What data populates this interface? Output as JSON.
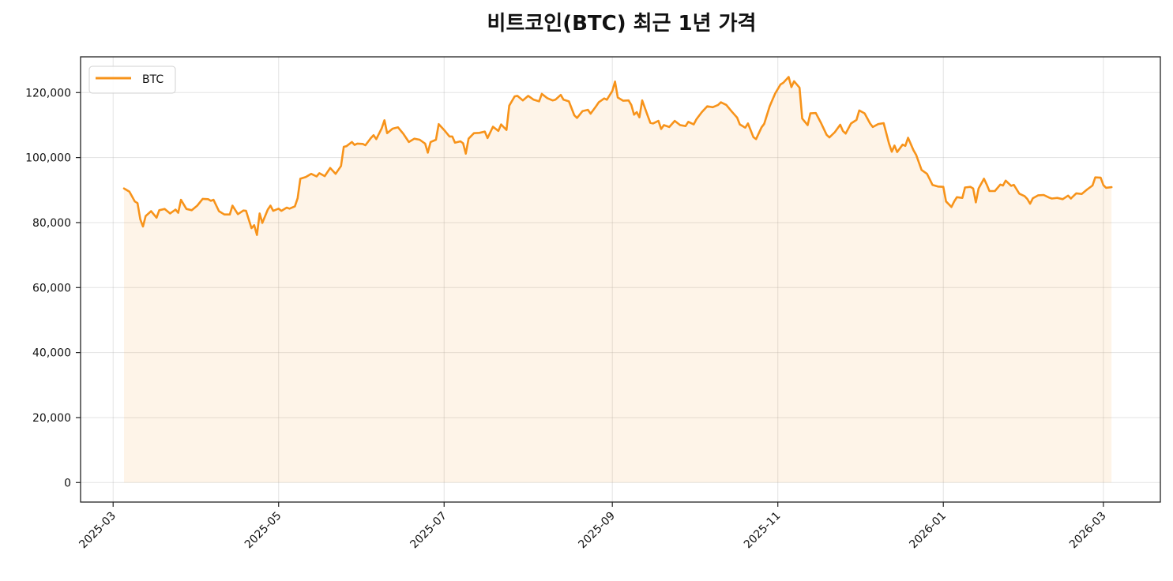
{
  "chart_data": {
    "type": "line",
    "title": "비트코인(BTC) 최근 1년 가격",
    "xlabel": "",
    "ylabel": "",
    "ylim": [
      -6000,
      131000
    ],
    "yticks": [
      0,
      20000,
      40000,
      60000,
      80000,
      100000,
      120000
    ],
    "ytick_labels": [
      "0",
      "20,000",
      "40,000",
      "60,000",
      "80,000",
      "100,000",
      "120,000"
    ],
    "xticks": [
      "2025-03",
      "2025-05",
      "2025-07",
      "2025-09",
      "2025-11",
      "2026-01",
      "2026-03"
    ],
    "xlim": [
      "2025-02-17",
      "2026-03-22"
    ],
    "grid": true,
    "legend": {
      "position": "upper left",
      "entries": [
        "BTC"
      ]
    },
    "fill_under": true,
    "series": [
      {
        "name": "BTC",
        "color": "#F7931A",
        "points": [
          [
            "2025-03-05",
            90500
          ],
          [
            "2025-03-07",
            89500
          ],
          [
            "2025-03-09",
            86500
          ],
          [
            "2025-03-10",
            86000
          ],
          [
            "2025-03-11",
            81000
          ],
          [
            "2025-03-12",
            78800
          ],
          [
            "2025-03-13",
            82000
          ],
          [
            "2025-03-15",
            83500
          ],
          [
            "2025-03-17",
            81500
          ],
          [
            "2025-03-18",
            83800
          ],
          [
            "2025-03-20",
            84200
          ],
          [
            "2025-03-22",
            82800
          ],
          [
            "2025-03-24",
            84000
          ],
          [
            "2025-03-25",
            83000
          ],
          [
            "2025-03-26",
            87000
          ],
          [
            "2025-03-28",
            84200
          ],
          [
            "2025-03-30",
            83800
          ],
          [
            "2025-04-01",
            85200
          ],
          [
            "2025-04-03",
            87300
          ],
          [
            "2025-04-05",
            87200
          ],
          [
            "2025-04-06",
            86700
          ],
          [
            "2025-04-07",
            87000
          ],
          [
            "2025-04-09",
            83500
          ],
          [
            "2025-04-11",
            82500
          ],
          [
            "2025-04-13",
            82500
          ],
          [
            "2025-04-14",
            85200
          ],
          [
            "2025-04-16",
            82600
          ],
          [
            "2025-04-18",
            83700
          ],
          [
            "2025-04-19",
            83600
          ],
          [
            "2025-04-21",
            78300
          ],
          [
            "2025-04-22",
            79200
          ],
          [
            "2025-04-23",
            76200
          ],
          [
            "2025-04-24",
            82800
          ],
          [
            "2025-04-25",
            79900
          ],
          [
            "2025-04-27",
            84000
          ],
          [
            "2025-04-28",
            85200
          ],
          [
            "2025-04-29",
            83600
          ],
          [
            "2025-05-01",
            84300
          ],
          [
            "2025-05-02",
            83600
          ],
          [
            "2025-05-04",
            84600
          ],
          [
            "2025-05-05",
            84300
          ],
          [
            "2025-05-07",
            85000
          ],
          [
            "2025-05-08",
            87500
          ],
          [
            "2025-05-09",
            93500
          ],
          [
            "2025-05-11",
            94000
          ],
          [
            "2025-05-13",
            95000
          ],
          [
            "2025-05-15",
            94200
          ],
          [
            "2025-05-16",
            95200
          ],
          [
            "2025-05-18",
            94300
          ],
          [
            "2025-05-20",
            96800
          ],
          [
            "2025-05-22",
            95000
          ],
          [
            "2025-05-24",
            97400
          ],
          [
            "2025-05-25",
            103300
          ],
          [
            "2025-05-26",
            103500
          ],
          [
            "2025-05-28",
            104800
          ],
          [
            "2025-05-29",
            103900
          ],
          [
            "2025-05-30",
            104300
          ],
          [
            "2025-06-01",
            104200
          ],
          [
            "2025-06-02",
            103800
          ],
          [
            "2025-06-04",
            106000
          ],
          [
            "2025-06-05",
            106900
          ],
          [
            "2025-06-06",
            105700
          ],
          [
            "2025-06-08",
            109000
          ],
          [
            "2025-06-09",
            111500
          ],
          [
            "2025-06-10",
            107500
          ],
          [
            "2025-06-12",
            108900
          ],
          [
            "2025-06-14",
            109300
          ],
          [
            "2025-06-16",
            107300
          ],
          [
            "2025-06-18",
            104800
          ],
          [
            "2025-06-20",
            105800
          ],
          [
            "2025-06-22",
            105500
          ],
          [
            "2025-06-24",
            104300
          ],
          [
            "2025-06-25",
            101500
          ],
          [
            "2025-06-26",
            104800
          ],
          [
            "2025-06-28",
            105500
          ],
          [
            "2025-06-29",
            110300
          ],
          [
            "2025-07-01",
            108500
          ],
          [
            "2025-07-03",
            106500
          ],
          [
            "2025-07-04",
            106500
          ],
          [
            "2025-07-05",
            104600
          ],
          [
            "2025-07-07",
            105000
          ],
          [
            "2025-07-08",
            104400
          ],
          [
            "2025-07-09",
            101200
          ],
          [
            "2025-07-10",
            105800
          ],
          [
            "2025-07-12",
            107500
          ],
          [
            "2025-07-14",
            107600
          ],
          [
            "2025-07-16",
            108000
          ],
          [
            "2025-07-17",
            106000
          ],
          [
            "2025-07-19",
            109500
          ],
          [
            "2025-07-21",
            108200
          ],
          [
            "2025-07-22",
            110200
          ],
          [
            "2025-07-24",
            108500
          ],
          [
            "2025-07-25",
            116000
          ],
          [
            "2025-07-27",
            118800
          ],
          [
            "2025-07-28",
            119000
          ],
          [
            "2025-07-30",
            117600
          ],
          [
            "2025-08-01",
            119000
          ],
          [
            "2025-08-03",
            117800
          ],
          [
            "2025-08-05",
            117300
          ],
          [
            "2025-08-06",
            119600
          ],
          [
            "2025-08-08",
            118300
          ],
          [
            "2025-08-10",
            117600
          ],
          [
            "2025-08-11",
            117800
          ],
          [
            "2025-08-13",
            119300
          ],
          [
            "2025-08-14",
            117800
          ],
          [
            "2025-08-16",
            117300
          ],
          [
            "2025-08-18",
            113000
          ],
          [
            "2025-08-19",
            112200
          ],
          [
            "2025-08-21",
            114300
          ],
          [
            "2025-08-23",
            114700
          ],
          [
            "2025-08-24",
            113500
          ],
          [
            "2025-08-26",
            115800
          ],
          [
            "2025-08-27",
            117000
          ],
          [
            "2025-08-29",
            118200
          ],
          [
            "2025-08-30",
            117800
          ],
          [
            "2025-09-01",
            120500
          ],
          [
            "2025-09-02",
            123400
          ],
          [
            "2025-09-03",
            118500
          ],
          [
            "2025-09-05",
            117500
          ],
          [
            "2025-09-07",
            117600
          ],
          [
            "2025-09-08",
            116200
          ],
          [
            "2025-09-09",
            113200
          ],
          [
            "2025-09-10",
            114000
          ],
          [
            "2025-09-11",
            112400
          ],
          [
            "2025-09-12",
            117600
          ],
          [
            "2025-09-14",
            113000
          ],
          [
            "2025-09-15",
            110700
          ],
          [
            "2025-09-16",
            110500
          ],
          [
            "2025-09-18",
            111300
          ],
          [
            "2025-09-19",
            108800
          ],
          [
            "2025-09-20",
            110000
          ],
          [
            "2025-09-22",
            109400
          ],
          [
            "2025-09-24",
            111300
          ],
          [
            "2025-09-26",
            110000
          ],
          [
            "2025-09-28",
            109700
          ],
          [
            "2025-09-29",
            111000
          ],
          [
            "2025-10-01",
            110200
          ],
          [
            "2025-10-02",
            111800
          ],
          [
            "2025-10-04",
            114000
          ],
          [
            "2025-10-06",
            115800
          ],
          [
            "2025-10-08",
            115500
          ],
          [
            "2025-10-10",
            116200
          ],
          [
            "2025-10-11",
            117000
          ],
          [
            "2025-10-13",
            116200
          ],
          [
            "2025-10-15",
            114200
          ],
          [
            "2025-10-17",
            112300
          ],
          [
            "2025-10-18",
            110200
          ],
          [
            "2025-10-20",
            109200
          ],
          [
            "2025-10-21",
            110500
          ],
          [
            "2025-10-23",
            106300
          ],
          [
            "2025-10-24",
            105700
          ],
          [
            "2025-10-26",
            109300
          ],
          [
            "2025-10-27",
            110400
          ],
          [
            "2025-10-29",
            115800
          ],
          [
            "2025-10-31",
            119700
          ],
          [
            "2025-11-02",
            122500
          ],
          [
            "2025-11-03",
            123000
          ],
          [
            "2025-11-05",
            124800
          ],
          [
            "2025-11-06",
            121700
          ],
          [
            "2025-11-07",
            123500
          ],
          [
            "2025-11-09",
            121500
          ],
          [
            "2025-11-10",
            112000
          ],
          [
            "2025-11-12",
            110000
          ],
          [
            "2025-11-13",
            113600
          ],
          [
            "2025-11-15",
            113700
          ],
          [
            "2025-11-17",
            110500
          ],
          [
            "2025-11-19",
            107000
          ],
          [
            "2025-11-20",
            106200
          ],
          [
            "2025-11-22",
            107800
          ],
          [
            "2025-11-24",
            110100
          ],
          [
            "2025-11-25",
            108200
          ],
          [
            "2025-11-26",
            107400
          ],
          [
            "2025-11-28",
            110500
          ],
          [
            "2025-11-30",
            111600
          ],
          [
            "2025-12-01",
            114500
          ],
          [
            "2025-12-03",
            113600
          ],
          [
            "2025-12-05",
            110500
          ],
          [
            "2025-12-06",
            109400
          ],
          [
            "2025-12-08",
            110300
          ],
          [
            "2025-12-10",
            110600
          ],
          [
            "2025-12-12",
            104300
          ],
          [
            "2025-12-13",
            101800
          ],
          [
            "2025-12-14",
            103700
          ],
          [
            "2025-12-15",
            101700
          ],
          [
            "2025-12-17",
            104000
          ],
          [
            "2025-12-18",
            103600
          ],
          [
            "2025-12-19",
            106100
          ],
          [
            "2025-12-21",
            102300
          ],
          [
            "2025-12-22",
            100800
          ],
          [
            "2025-12-24",
            96200
          ],
          [
            "2025-12-26",
            95000
          ],
          [
            "2025-12-27",
            93300
          ],
          [
            "2025-12-28",
            91600
          ],
          [
            "2025-12-30",
            91100
          ],
          [
            "2026-01-01",
            91000
          ],
          [
            "2026-01-02",
            86500
          ],
          [
            "2026-01-04",
            84800
          ],
          [
            "2026-01-05",
            86500
          ],
          [
            "2026-01-06",
            87800
          ],
          [
            "2026-01-08",
            87600
          ],
          [
            "2026-01-09",
            90800
          ],
          [
            "2026-01-11",
            91000
          ],
          [
            "2026-01-12",
            90500
          ],
          [
            "2026-01-13",
            86200
          ],
          [
            "2026-01-14",
            90500
          ],
          [
            "2026-01-16",
            93500
          ],
          [
            "2026-01-17",
            91700
          ],
          [
            "2026-01-18",
            89700
          ],
          [
            "2026-01-20",
            89700
          ],
          [
            "2026-01-22",
            91700
          ],
          [
            "2026-01-23",
            91400
          ],
          [
            "2026-01-24",
            92900
          ],
          [
            "2026-01-26",
            91300
          ],
          [
            "2026-01-27",
            91600
          ],
          [
            "2026-01-29",
            88900
          ],
          [
            "2026-01-31",
            88100
          ],
          [
            "2026-02-01",
            87200
          ],
          [
            "2026-02-02",
            85800
          ],
          [
            "2026-02-03",
            87500
          ],
          [
            "2026-02-05",
            88400
          ],
          [
            "2026-02-07",
            88500
          ],
          [
            "2026-02-09",
            87700
          ],
          [
            "2026-02-10",
            87400
          ],
          [
            "2026-02-12",
            87600
          ],
          [
            "2026-02-14",
            87200
          ],
          [
            "2026-02-16",
            88300
          ],
          [
            "2026-02-17",
            87400
          ],
          [
            "2026-02-19",
            89000
          ],
          [
            "2026-02-21",
            88800
          ],
          [
            "2026-02-23",
            90200
          ],
          [
            "2026-02-25",
            91400
          ],
          [
            "2026-02-26",
            93900
          ],
          [
            "2026-02-28",
            93800
          ],
          [
            "2026-03-01",
            91500
          ],
          [
            "2026-03-02",
            90700
          ],
          [
            "2026-03-04",
            90900
          ]
        ]
      }
    ]
  },
  "plot_geometry_note": "Series points listed as [date, price] pairs; date->x uses xlim, price->y uses ylim"
}
